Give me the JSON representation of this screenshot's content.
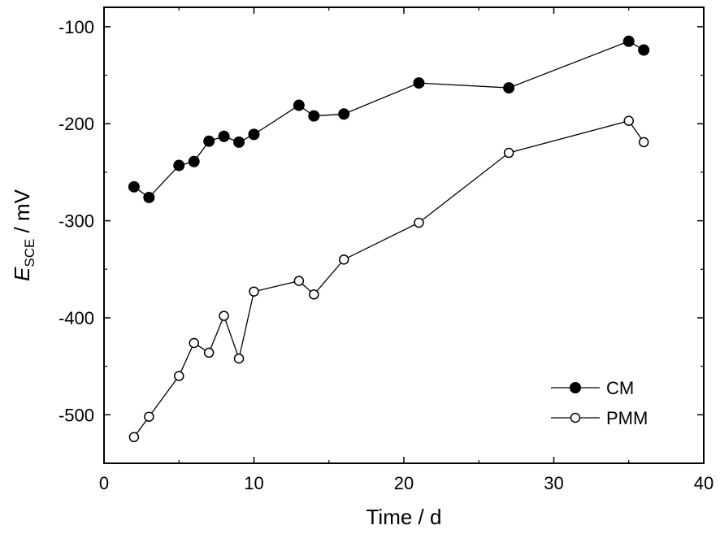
{
  "chart_data": {
    "type": "line",
    "title": "",
    "xlabel": "Time / d",
    "ylabel": {
      "main": "E",
      "subscript": "SCE",
      "unit_suffix": " / mV"
    },
    "xlim": [
      0,
      40
    ],
    "ylim": [
      -550,
      -80
    ],
    "xticks": [
      0,
      10,
      20,
      30,
      40
    ],
    "yticks": [
      -500,
      -400,
      -300,
      -200,
      -100
    ],
    "grid": false,
    "legend_position": "bottom-right",
    "series": [
      {
        "name": "CM",
        "marker": "filled-circle",
        "color": "#000000",
        "x": [
          2,
          3,
          5,
          6,
          7,
          8,
          9,
          10,
          13,
          14,
          16,
          21,
          27,
          35,
          36
        ],
        "y": [
          -265,
          -276,
          -243,
          -239,
          -218,
          -213,
          -219,
          -211,
          -181,
          -192,
          -190,
          -158,
          -163,
          -115,
          -124
        ]
      },
      {
        "name": "PMM",
        "marker": "open-circle",
        "color": "#000000",
        "x": [
          2,
          3,
          5,
          6,
          7,
          8,
          9,
          10,
          13,
          14,
          16,
          21,
          27,
          35,
          36
        ],
        "y": [
          -523,
          -502,
          -460,
          -426,
          -436,
          -398,
          -442,
          -373,
          -362,
          -376,
          -340,
          -302,
          -230,
          -197,
          -219
        ]
      }
    ]
  }
}
